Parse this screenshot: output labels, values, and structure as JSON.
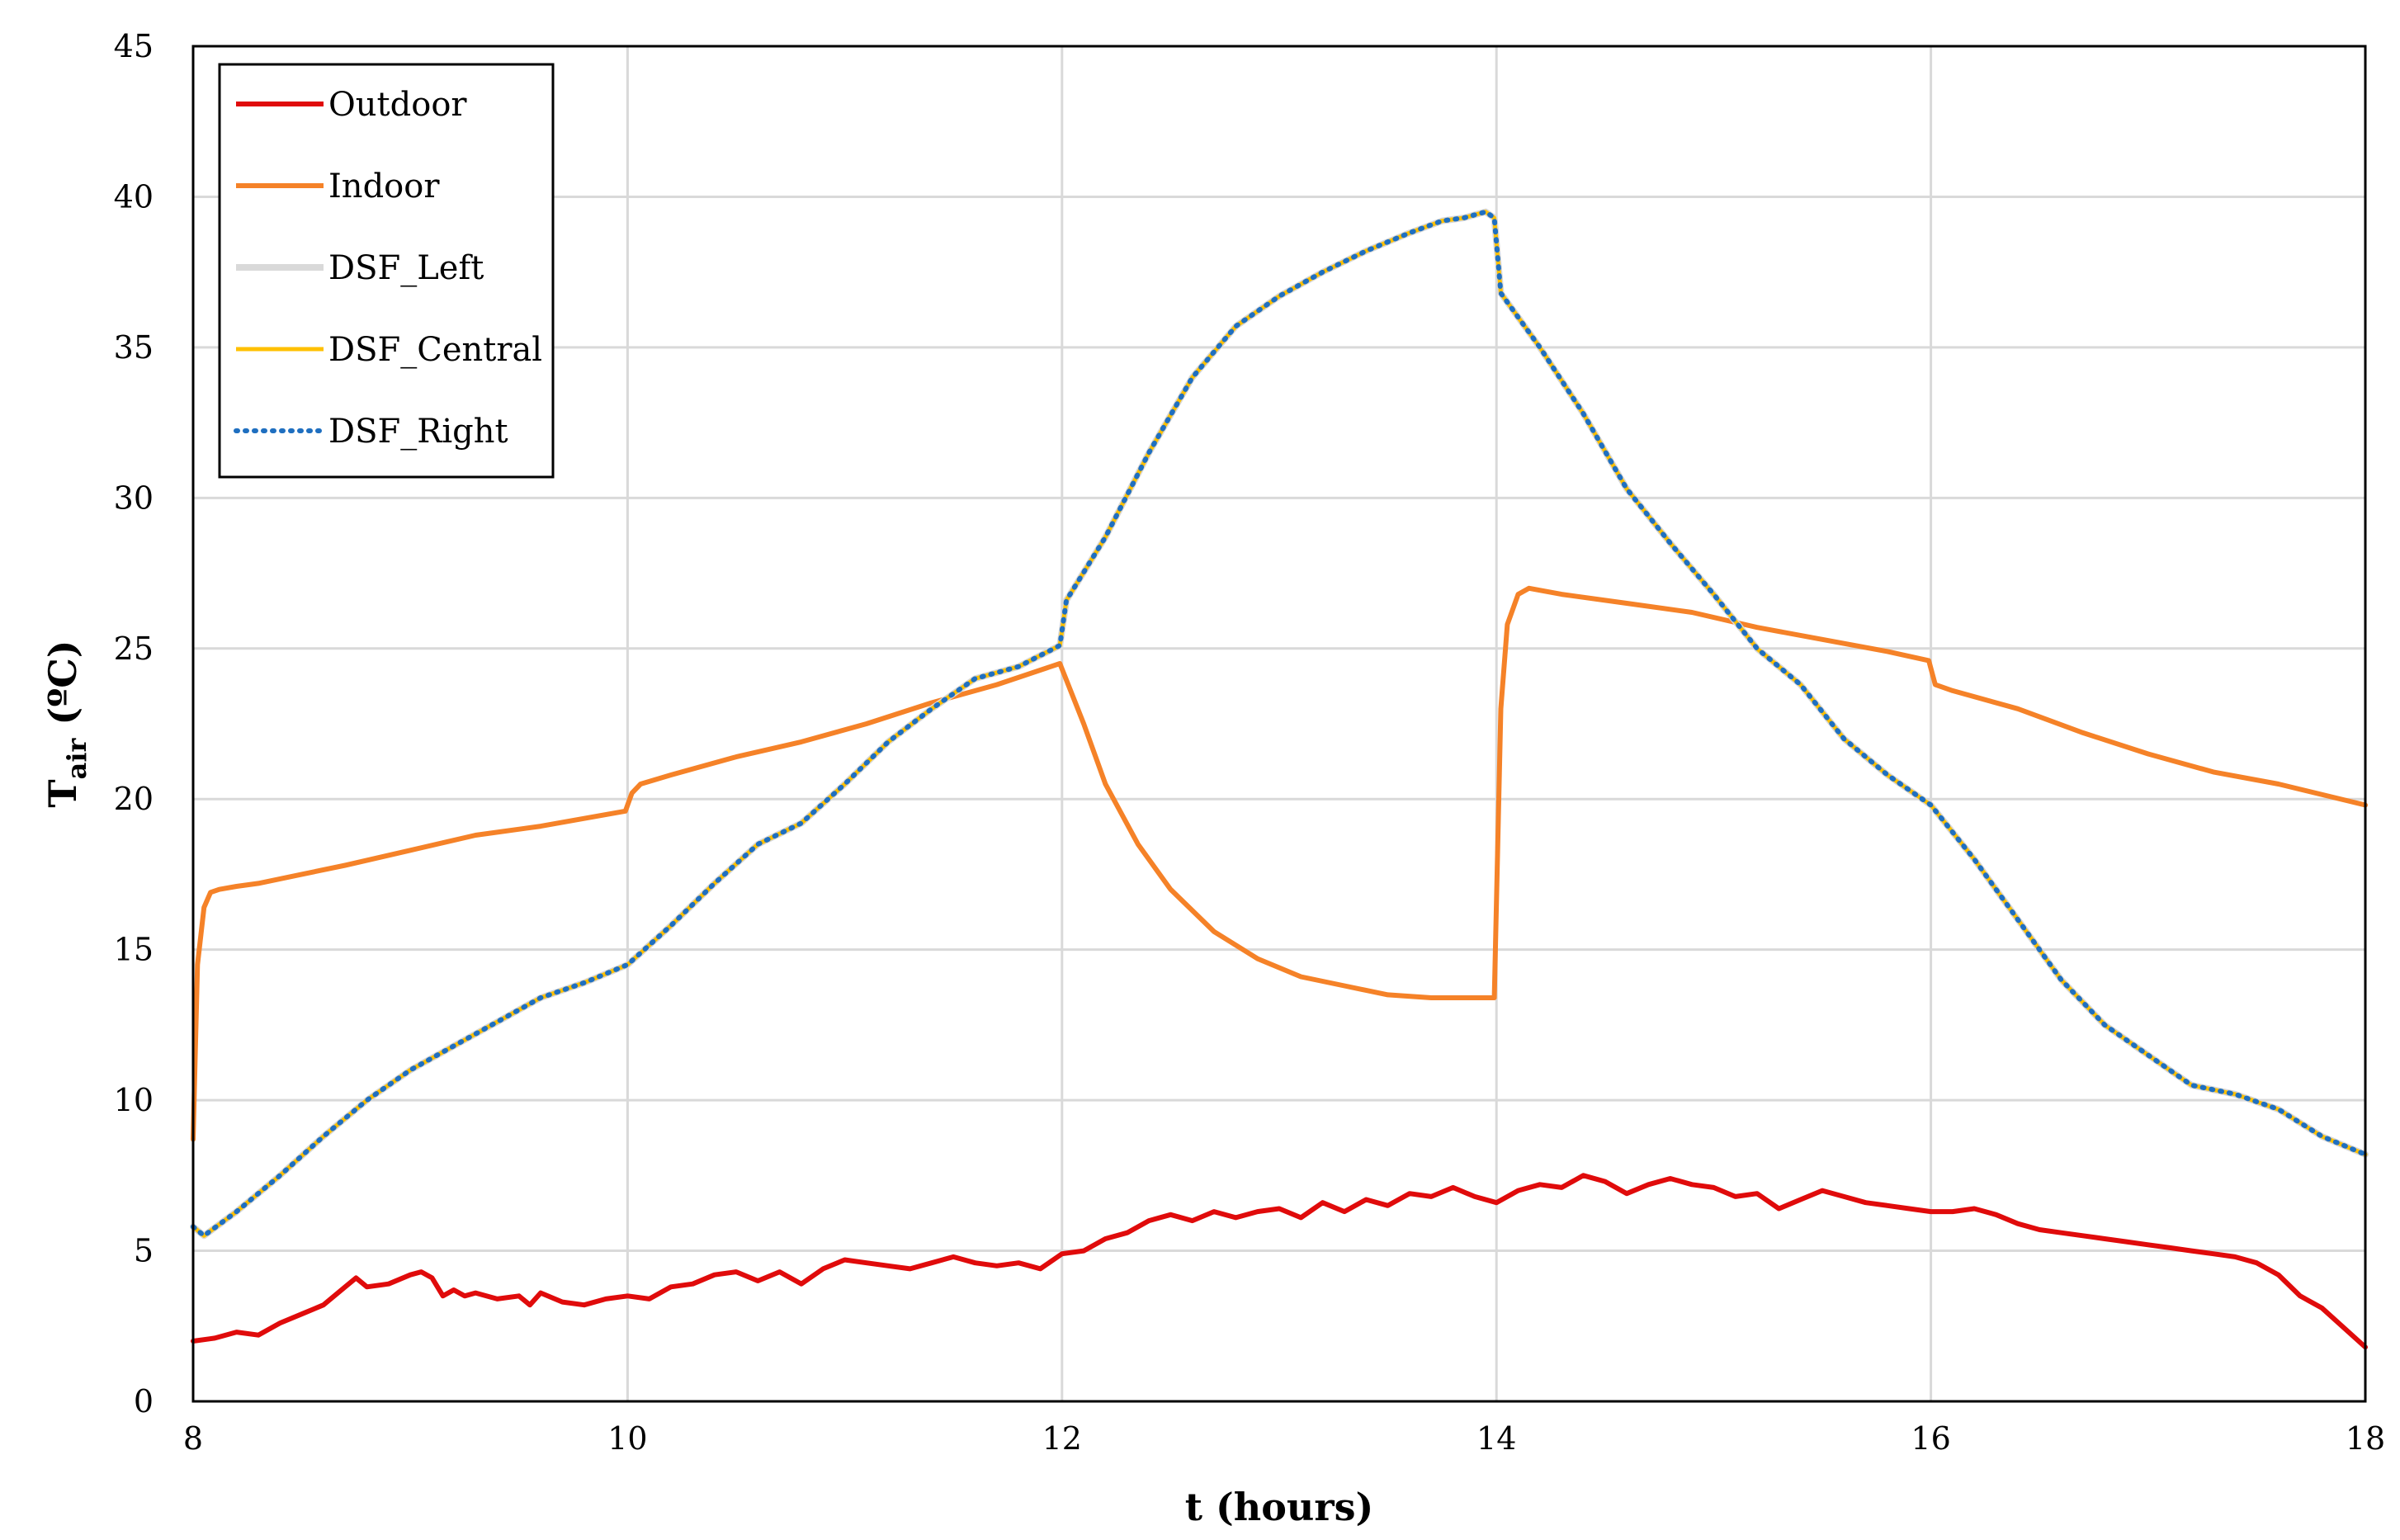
{
  "chart_data": {
    "type": "line",
    "title": "",
    "xlabel": "t (hours)",
    "ylabel": {
      "main": "T",
      "sub": "air",
      "suffix": " (ºC)"
    },
    "xlim": [
      8,
      18
    ],
    "ylim": [
      0,
      45
    ],
    "x_ticks": [
      "8",
      "10",
      "12",
      "14",
      "16",
      "18"
    ],
    "y_ticks": [
      "0",
      "5",
      "10",
      "15",
      "20",
      "25",
      "30",
      "35",
      "40",
      "45"
    ],
    "grid": true,
    "legend_position": "top-left",
    "series": [
      {
        "name": "Outdoor",
        "color": "#e00b0b",
        "style": "solid",
        "x": [
          8.0,
          8.1,
          8.2,
          8.3,
          8.4,
          8.5,
          8.6,
          8.7,
          8.75,
          8.8,
          8.9,
          9.0,
          9.05,
          9.1,
          9.15,
          9.2,
          9.25,
          9.3,
          9.4,
          9.5,
          9.55,
          9.6,
          9.7,
          9.8,
          9.9,
          10.0,
          10.1,
          10.2,
          10.3,
          10.4,
          10.5,
          10.6,
          10.7,
          10.8,
          10.9,
          11.0,
          11.1,
          11.2,
          11.3,
          11.4,
          11.5,
          11.6,
          11.7,
          11.8,
          11.9,
          12.0,
          12.1,
          12.2,
          12.3,
          12.4,
          12.5,
          12.6,
          12.7,
          12.8,
          12.9,
          13.0,
          13.1,
          13.2,
          13.3,
          13.4,
          13.5,
          13.6,
          13.7,
          13.8,
          13.9,
          14.0,
          14.1,
          14.2,
          14.3,
          14.4,
          14.5,
          14.6,
          14.7,
          14.8,
          14.9,
          15.0,
          15.1,
          15.2,
          15.3,
          15.4,
          15.5,
          15.6,
          15.7,
          15.8,
          15.9,
          16.0,
          16.1,
          16.2,
          16.3,
          16.4,
          16.5,
          16.6,
          16.7,
          16.8,
          16.9,
          17.0,
          17.1,
          17.2,
          17.3,
          17.4,
          17.5,
          17.6,
          17.7,
          17.8,
          18.0
        ],
        "values": [
          2.0,
          2.1,
          2.3,
          2.2,
          2.6,
          2.9,
          3.2,
          3.8,
          4.1,
          3.8,
          3.9,
          4.2,
          4.3,
          4.1,
          3.5,
          3.7,
          3.5,
          3.6,
          3.4,
          3.5,
          3.2,
          3.6,
          3.3,
          3.2,
          3.4,
          3.5,
          3.4,
          3.8,
          3.9,
          4.2,
          4.3,
          4.0,
          4.3,
          3.9,
          4.4,
          4.7,
          4.6,
          4.5,
          4.4,
          4.6,
          4.8,
          4.6,
          4.5,
          4.6,
          4.4,
          4.9,
          5.0,
          5.4,
          5.6,
          6.0,
          6.2,
          6.0,
          6.3,
          6.1,
          6.3,
          6.4,
          6.1,
          6.6,
          6.3,
          6.7,
          6.5,
          6.9,
          6.8,
          7.1,
          6.8,
          6.6,
          7.0,
          7.2,
          7.1,
          7.5,
          7.3,
          6.9,
          7.2,
          7.4,
          7.2,
          7.1,
          6.8,
          6.9,
          6.4,
          6.7,
          7.0,
          6.8,
          6.6,
          6.5,
          6.4,
          6.3,
          6.3,
          6.4,
          6.2,
          5.9,
          5.7,
          5.6,
          5.5,
          5.4,
          5.3,
          5.2,
          5.1,
          5.0,
          4.9,
          4.8,
          4.6,
          4.2,
          3.5,
          3.1,
          1.8
        ]
      },
      {
        "name": "Indoor",
        "color": "#f58228",
        "style": "solid",
        "x": [
          8.0,
          8.02,
          8.05,
          8.08,
          8.12,
          8.2,
          8.3,
          8.5,
          8.7,
          9.0,
          9.3,
          9.6,
          9.99,
          10.02,
          10.06,
          10.2,
          10.5,
          10.8,
          11.1,
          11.4,
          11.7,
          11.99,
          12.1,
          12.2,
          12.35,
          12.5,
          12.7,
          12.9,
          13.1,
          13.3,
          13.5,
          13.7,
          13.99,
          14.02,
          14.05,
          14.1,
          14.15,
          14.3,
          14.6,
          14.9,
          15.2,
          15.5,
          15.8,
          15.99,
          16.02,
          16.1,
          16.4,
          16.7,
          17.0,
          17.3,
          17.6,
          18.0
        ],
        "values": [
          8.7,
          14.5,
          16.4,
          16.9,
          17.0,
          17.1,
          17.2,
          17.5,
          17.8,
          18.3,
          18.8,
          19.1,
          19.6,
          20.2,
          20.5,
          20.8,
          21.4,
          21.9,
          22.5,
          23.2,
          23.8,
          24.5,
          22.5,
          20.5,
          18.5,
          17.0,
          15.6,
          14.7,
          14.1,
          13.8,
          13.5,
          13.4,
          13.4,
          23.0,
          25.8,
          26.8,
          27.0,
          26.8,
          26.5,
          26.2,
          25.7,
          25.3,
          24.9,
          24.6,
          23.8,
          23.6,
          23.0,
          22.2,
          21.5,
          20.9,
          20.5,
          19.8
        ]
      },
      {
        "name": "DSF_Left",
        "color": "#d9d9d9",
        "style": "solid",
        "x": [
          8.0,
          8.05,
          8.2,
          8.4,
          8.6,
          8.8,
          9.0,
          9.2,
          9.4,
          9.6,
          9.8,
          10.0,
          10.2,
          10.4,
          10.6,
          10.8,
          11.0,
          11.2,
          11.4,
          11.6,
          11.8,
          11.99,
          12.02,
          12.2,
          12.4,
          12.6,
          12.8,
          13.0,
          13.2,
          13.4,
          13.6,
          13.75,
          13.85,
          13.95,
          13.99,
          14.02,
          14.2,
          14.4,
          14.6,
          14.8,
          15.0,
          15.2,
          15.4,
          15.6,
          15.8,
          16.0,
          16.2,
          16.4,
          16.6,
          16.8,
          17.0,
          17.2,
          17.4,
          17.6,
          17.8,
          18.0
        ],
        "values": [
          5.8,
          5.5,
          6.3,
          7.5,
          8.8,
          10.0,
          11.0,
          11.8,
          12.6,
          13.4,
          13.9,
          14.5,
          15.8,
          17.2,
          18.5,
          19.2,
          20.5,
          21.9,
          23.0,
          24.0,
          24.4,
          25.1,
          26.6,
          28.7,
          31.5,
          34.0,
          35.7,
          36.7,
          37.5,
          38.2,
          38.8,
          39.2,
          39.3,
          39.5,
          39.3,
          36.8,
          35.0,
          32.8,
          30.3,
          28.5,
          26.8,
          25.0,
          23.8,
          22.0,
          20.8,
          19.8,
          18.0,
          16.0,
          14.0,
          12.5,
          11.5,
          10.5,
          10.2,
          9.7,
          8.8,
          8.2
        ]
      },
      {
        "name": "DSF_Central",
        "color": "#ffc000",
        "style": "solid",
        "x": [
          8.0,
          8.05,
          8.2,
          8.4,
          8.6,
          8.8,
          9.0,
          9.2,
          9.4,
          9.6,
          9.8,
          10.0,
          10.2,
          10.4,
          10.6,
          10.8,
          11.0,
          11.2,
          11.4,
          11.6,
          11.8,
          11.99,
          12.02,
          12.2,
          12.4,
          12.6,
          12.8,
          13.0,
          13.2,
          13.4,
          13.6,
          13.75,
          13.85,
          13.95,
          13.99,
          14.02,
          14.2,
          14.4,
          14.6,
          14.8,
          15.0,
          15.2,
          15.4,
          15.6,
          15.8,
          16.0,
          16.2,
          16.4,
          16.6,
          16.8,
          17.0,
          17.2,
          17.4,
          17.6,
          17.8,
          18.0
        ],
        "values": [
          5.8,
          5.5,
          6.3,
          7.5,
          8.8,
          10.0,
          11.0,
          11.8,
          12.6,
          13.4,
          13.9,
          14.5,
          15.8,
          17.2,
          18.5,
          19.2,
          20.5,
          21.9,
          23.0,
          24.0,
          24.4,
          25.1,
          26.6,
          28.7,
          31.5,
          34.0,
          35.7,
          36.7,
          37.5,
          38.2,
          38.8,
          39.2,
          39.3,
          39.5,
          39.3,
          36.8,
          35.0,
          32.8,
          30.3,
          28.5,
          26.8,
          25.0,
          23.8,
          22.0,
          20.8,
          19.8,
          18.0,
          16.0,
          14.0,
          12.5,
          11.5,
          10.5,
          10.2,
          9.7,
          8.8,
          8.2
        ]
      },
      {
        "name": "DSF_Right",
        "color": "#1f6fc0",
        "style": "dotted",
        "x": [
          8.0,
          8.05,
          8.2,
          8.4,
          8.6,
          8.8,
          9.0,
          9.2,
          9.4,
          9.6,
          9.8,
          10.0,
          10.2,
          10.4,
          10.6,
          10.8,
          11.0,
          11.2,
          11.4,
          11.6,
          11.8,
          11.99,
          12.02,
          12.2,
          12.4,
          12.6,
          12.8,
          13.0,
          13.2,
          13.4,
          13.6,
          13.75,
          13.85,
          13.95,
          13.99,
          14.02,
          14.2,
          14.4,
          14.6,
          14.8,
          15.0,
          15.2,
          15.4,
          15.6,
          15.8,
          16.0,
          16.2,
          16.4,
          16.6,
          16.8,
          17.0,
          17.2,
          17.4,
          17.6,
          17.8,
          18.0
        ],
        "values": [
          5.8,
          5.5,
          6.3,
          7.5,
          8.8,
          10.0,
          11.0,
          11.8,
          12.6,
          13.4,
          13.9,
          14.5,
          15.8,
          17.2,
          18.5,
          19.2,
          20.5,
          21.9,
          23.0,
          24.0,
          24.4,
          25.1,
          26.6,
          28.7,
          31.5,
          34.0,
          35.7,
          36.7,
          37.5,
          38.2,
          38.8,
          39.2,
          39.3,
          39.5,
          39.3,
          36.8,
          35.0,
          32.8,
          30.3,
          28.5,
          26.8,
          25.0,
          23.8,
          22.0,
          20.8,
          19.8,
          18.0,
          16.0,
          14.0,
          12.5,
          11.5,
          10.5,
          10.2,
          9.7,
          8.8,
          8.2
        ]
      }
    ]
  }
}
